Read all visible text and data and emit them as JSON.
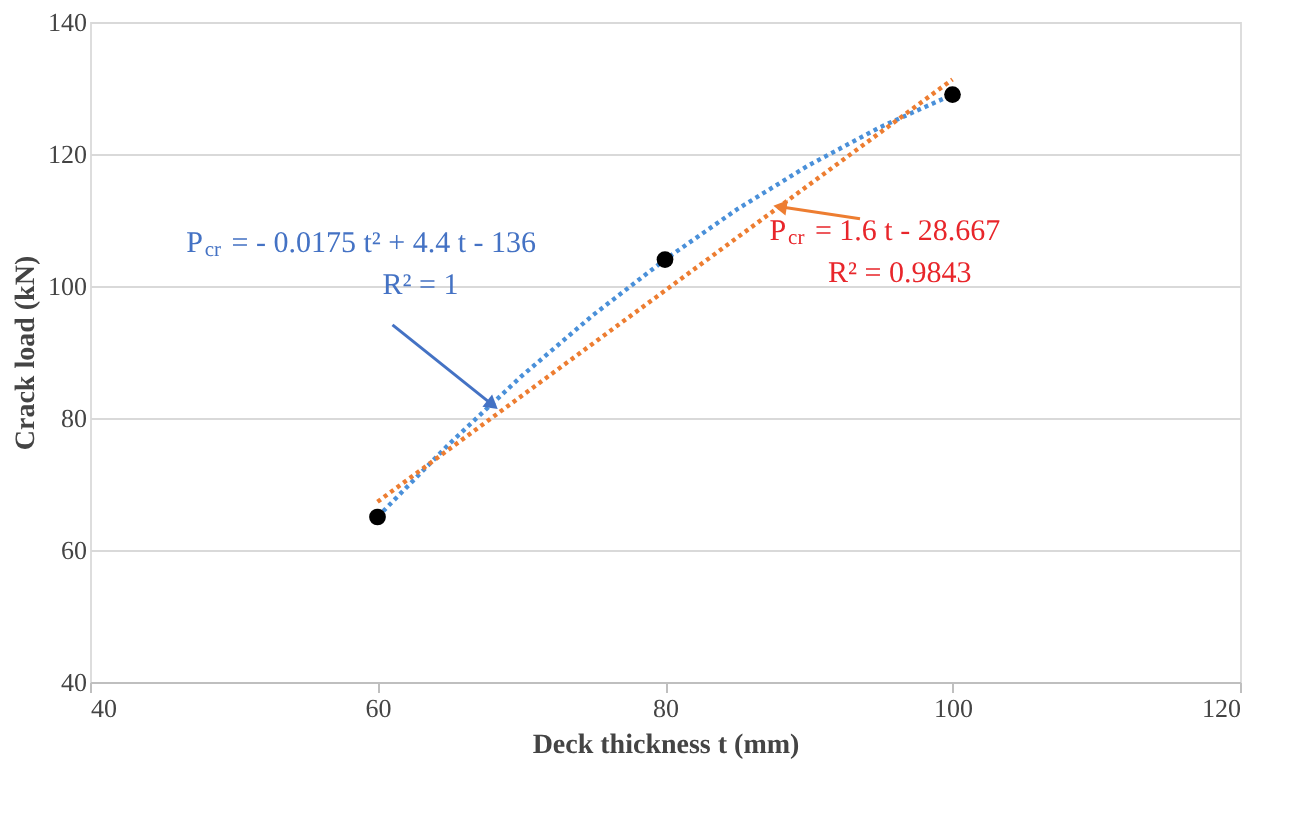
{
  "chart_data": {
    "type": "scatter",
    "xlabel": "Deck thickness t (mm)",
    "ylabel": "Crack load (kN)",
    "xlim": [
      40,
      120
    ],
    "xticks": [
      40,
      60,
      80,
      100,
      120
    ],
    "ylim": [
      40,
      140
    ],
    "yticks": [
      40,
      60,
      80,
      100,
      120,
      140
    ],
    "grid": "y",
    "series": [
      {
        "type": "scatter",
        "color": "#000000",
        "marker": "circle",
        "x": [
          60,
          80,
          100
        ],
        "values": [
          65,
          104,
          129
        ]
      },
      {
        "type": "line",
        "color": "#4a90d9",
        "line_style": "dotted",
        "x": [
          60,
          65,
          70,
          75,
          80,
          85,
          90,
          95,
          100
        ],
        "values": [
          65,
          76.1,
          86.3,
          95.6,
          104,
          111.6,
          118.3,
          124.1,
          129
        ]
      },
      {
        "type": "line",
        "color": "#ed7d31",
        "line_style": "dotted",
        "x": [
          60,
          100
        ],
        "values": [
          67.3,
          131.3
        ]
      }
    ],
    "annotations": [
      "P$_{cr}$ = - 0.0175 t² + 4.4 t - 136",
      {
        "text": "R² = 1",
        "x": 68,
        "y": 82
      },
      {
        "text": "P$_{cr}$ = 1.6 t - 28.667",
        "x": 88,
        "y": 112
      },
      "R² = 0.9843"
    ]
  }
}
